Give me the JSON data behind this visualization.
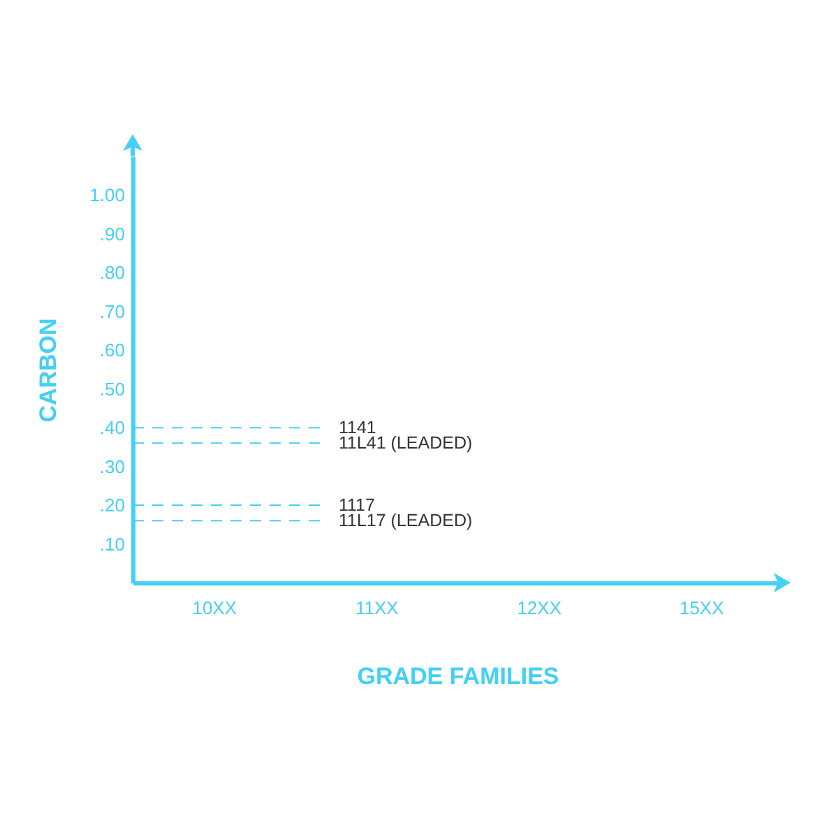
{
  "chart_data": {
    "type": "line",
    "xlabel": "GRADE FAMILIES",
    "ylabel": "CARBON",
    "categories": [
      "10XX",
      "11XX",
      "12XX",
      "15XX"
    ],
    "ylim": [
      0,
      1.1
    ],
    "yticks": [
      {
        "value": 0.1,
        "label": ".10"
      },
      {
        "value": 0.2,
        "label": ".20"
      },
      {
        "value": 0.3,
        "label": ".30"
      },
      {
        "value": 0.4,
        "label": ".40"
      },
      {
        "value": 0.5,
        "label": ".50"
      },
      {
        "value": 0.6,
        "label": ".60"
      },
      {
        "value": 0.7,
        "label": ".70"
      },
      {
        "value": 0.8,
        "label": ".80"
      },
      {
        "value": 0.9,
        "label": ".90"
      },
      {
        "value": 1,
        "label": "1.00"
      }
    ],
    "ref_lines": [
      {
        "axis": "y",
        "value": 0.4,
        "color": "#45d0f5",
        "line_style": "dashed"
      },
      {
        "axis": "y",
        "value": 0.36,
        "color": "#45d0f5",
        "line_style": "dashed"
      },
      {
        "axis": "y",
        "value": 0.2,
        "color": "#45d0f5",
        "line_style": "dashed"
      },
      {
        "axis": "y",
        "value": 0.16,
        "color": "#45d0f5",
        "line_style": "dashed"
      }
    ],
    "annotations": [
      "1141",
      "11L41 (LEADED)",
      "1117",
      "11L17 (LEADED)"
    ]
  }
}
